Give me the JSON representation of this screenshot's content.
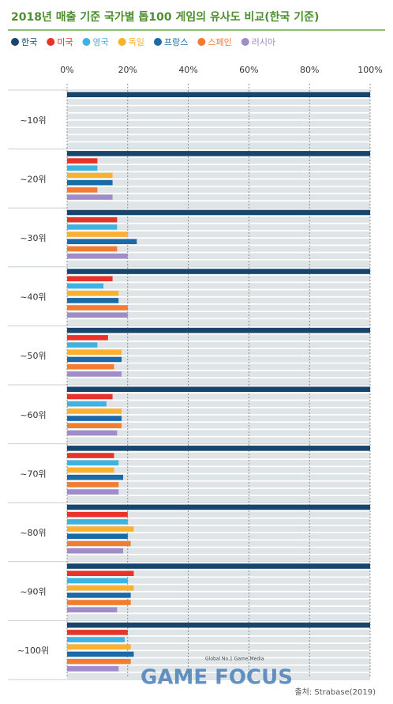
{
  "chart_data": {
    "type": "hbar",
    "title": "2018년 매출 기준 국가별 톱100 게임의 유사도 비교(한국 기준)",
    "categories": [
      "~10위",
      "~20위",
      "~30위",
      "~40위",
      "~50위",
      "~60위",
      "~70위",
      "~80위",
      "~90위",
      "~100위"
    ],
    "series": [
      {
        "name": "한국",
        "color": "#17456b",
        "values": [
          100,
          100,
          100,
          100,
          100,
          100,
          100,
          100,
          100,
          100
        ]
      },
      {
        "name": "미국",
        "color": "#e8332a",
        "values": [
          0,
          10,
          16.5,
          15,
          13.5,
          15,
          15.5,
          20,
          22,
          20
        ]
      },
      {
        "name": "영국",
        "color": "#3fb3e0",
        "values": [
          0,
          10,
          16.5,
          12,
          10,
          13,
          17,
          20,
          20,
          19
        ]
      },
      {
        "name": "독일",
        "color": "#fbb030",
        "values": [
          0,
          15,
          20,
          17,
          18,
          18,
          15.5,
          22,
          22,
          21
        ]
      },
      {
        "name": "프랑스",
        "color": "#1a6aa8",
        "values": [
          0,
          15,
          23,
          17,
          18,
          18,
          18.5,
          20,
          21,
          22
        ]
      },
      {
        "name": "스페인",
        "color": "#f47c30",
        "values": [
          0,
          10,
          16.5,
          20,
          15.5,
          18,
          17,
          21,
          21,
          21
        ]
      },
      {
        "name": "러시아",
        "color": "#a08cc8",
        "values": [
          0,
          15,
          20,
          20,
          18,
          16.5,
          17,
          18.5,
          16.5,
          17
        ]
      }
    ],
    "xlim": [
      0,
      100
    ],
    "xticks": [
      {
        "value": 0,
        "label": "0%"
      },
      {
        "value": 20,
        "label": "20%"
      },
      {
        "value": 40,
        "label": "40%"
      },
      {
        "value": 60,
        "label": "60%"
      },
      {
        "value": 80,
        "label": "80%"
      },
      {
        "value": 100,
        "label": "100%"
      }
    ],
    "grid": true,
    "source": "출처: Strabase(2019)",
    "logo": {
      "tagline": "Global No.1 Game Media",
      "name": "GAME FOCUS"
    }
  }
}
